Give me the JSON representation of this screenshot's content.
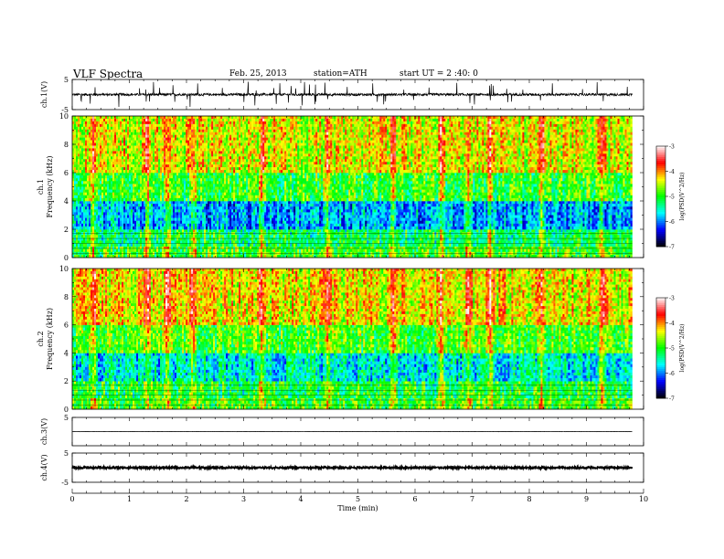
{
  "header": {
    "title": "VLF  Spectra",
    "date": "Feb. 25, 2013",
    "station": "station=ATH",
    "start": "start  UT  =    2  :40: 0"
  },
  "chart_data": [
    {
      "type": "line",
      "panel": "ch1-waveform",
      "ylabel": "ch.1(V)",
      "ylim": [
        -5,
        5
      ],
      "ytick_labels": [
        "5",
        "-5"
      ],
      "xlim": [
        0,
        10
      ],
      "data_end_min": 9.8,
      "baseline": 0,
      "noise_amplitude": 0.4,
      "spike_amplitude": 4,
      "color": "#000000"
    },
    {
      "type": "heatmap",
      "panel": "ch1-spectrogram",
      "ylabel": [
        "ch.1",
        "Frequency  (kHz)"
      ],
      "ylim": [
        0,
        10
      ],
      "ytick_labels": [
        "0",
        "2",
        "4",
        "6",
        "8",
        "10"
      ],
      "xlim": [
        0,
        10
      ],
      "data_end_min": 9.8,
      "colorbar": {
        "label": "log(PSD(V^2/Hz)",
        "range": [
          -7,
          -3
        ],
        "tick_labels": [
          "-3",
          "-4",
          "-5",
          "-6",
          "-7"
        ],
        "colors": [
          "#000000",
          "#0000ff",
          "#00ffff",
          "#00ff00",
          "#ffff00",
          "#ff0000",
          "#ffffff"
        ]
      },
      "bands": [
        {
          "f": [
            0,
            0.8
          ],
          "level": -4.9
        },
        {
          "f": [
            0.8,
            2.0
          ],
          "level": -5.2
        },
        {
          "f": [
            2.0,
            4.0
          ],
          "level": -5.9
        },
        {
          "f": [
            4.0,
            6.0
          ],
          "level": -5.0
        },
        {
          "f": [
            6.0,
            10.0
          ],
          "level": -4.4
        }
      ],
      "vertical_bursts_min": [
        0.35,
        1.3,
        1.65,
        2.1,
        3.3,
        4.45,
        5.6,
        6.45,
        6.92,
        7.3,
        8.2,
        9.25
      ]
    },
    {
      "type": "heatmap",
      "panel": "ch2-spectrogram",
      "ylabel": [
        "ch.2",
        "Frequency  (kHz)"
      ],
      "ylim": [
        0,
        10
      ],
      "ytick_labels": [
        "0",
        "2",
        "4",
        "6",
        "8",
        "10"
      ],
      "xlim": [
        0,
        10
      ],
      "data_end_min": 9.8,
      "colorbar": {
        "label": "log(PSD(V^2/Hz)",
        "range": [
          -7,
          -3
        ],
        "tick_labels": [
          "-3",
          "-4",
          "-5",
          "-6",
          "-7"
        ],
        "colors": [
          "#000000",
          "#0000ff",
          "#00ffff",
          "#00ff00",
          "#ffff00",
          "#ff0000",
          "#ffffff"
        ]
      },
      "bands": [
        {
          "f": [
            0,
            0.8
          ],
          "level": -4.9
        },
        {
          "f": [
            0.8,
            2.0
          ],
          "level": -5.1
        },
        {
          "f": [
            2.0,
            4.0
          ],
          "level": -5.6
        },
        {
          "f": [
            4.0,
            6.0
          ],
          "level": -4.9
        },
        {
          "f": [
            6.0,
            10.0
          ],
          "level": -4.3
        }
      ],
      "vertical_bursts_min": [
        0.35,
        1.3,
        1.65,
        2.1,
        3.3,
        4.45,
        5.6,
        6.45,
        6.92,
        7.3,
        8.2,
        9.25
      ]
    },
    {
      "type": "line",
      "panel": "ch3-waveform",
      "ylabel": "ch.3(V)",
      "ylim": [
        -5,
        5
      ],
      "ytick_labels": [
        "5"
      ],
      "xlim": [
        0,
        10
      ],
      "data_end_min": 9.8,
      "baseline": 0,
      "noise_amplitude": 0.05,
      "color": "#000000"
    },
    {
      "type": "line",
      "panel": "ch4-waveform",
      "ylabel": "ch.4(V)",
      "ylim": [
        -5,
        5
      ],
      "ytick_labels": [
        "5",
        "-5"
      ],
      "xlim": [
        0,
        10
      ],
      "data_end_min": 9.8,
      "baseline": 0,
      "noise_amplitude": 0.3,
      "color": "#000000"
    }
  ],
  "xaxis": {
    "label": "Time  (min)",
    "tick_labels": [
      "0",
      "1",
      "2",
      "3",
      "4",
      "5",
      "6",
      "7",
      "8",
      "9",
      "10"
    ]
  }
}
